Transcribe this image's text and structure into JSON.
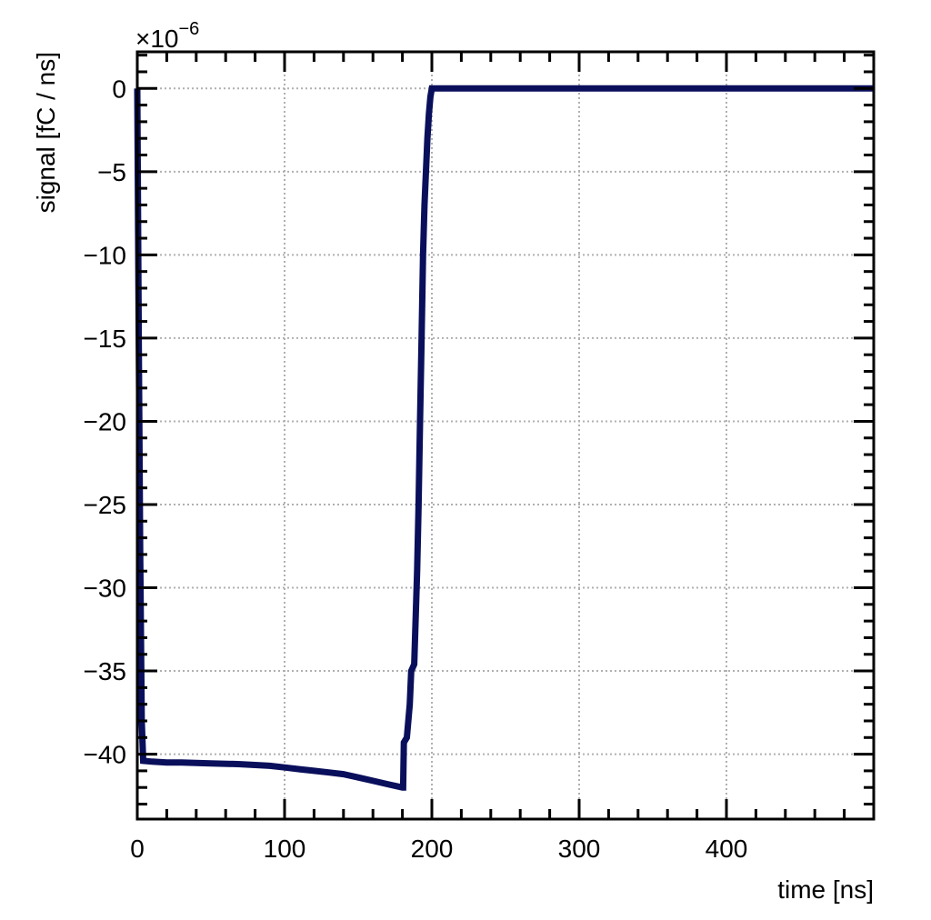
{
  "chart_data": {
    "type": "line",
    "title": "",
    "xlabel": "time [ns]",
    "ylabel": "signal [fC / ns]",
    "y_multiplier": "×10",
    "y_multiplier_exponent": "−6",
    "xlim": [
      0,
      500
    ],
    "ylim": [
      -43.9,
      2.2
    ],
    "grid": true,
    "legend": null,
    "x_ticks": [
      0,
      100,
      200,
      300,
      400
    ],
    "x_tick_labels": [
      "0",
      "100",
      "200",
      "300",
      "400"
    ],
    "x_minor_step": 20,
    "y_ticks": [
      0,
      -5,
      -10,
      -15,
      -20,
      -25,
      -30,
      -35,
      -40
    ],
    "y_tick_labels": [
      "0",
      "−5",
      "−10",
      "−15",
      "−20",
      "−25",
      "−30",
      "−35",
      "−40"
    ],
    "y_minor_step": 1,
    "line_color": "#0a0f5c",
    "series": [
      {
        "name": "signal",
        "x": [
          0,
          1,
          2,
          3,
          4,
          10,
          20,
          30,
          50,
          70,
          90,
          100,
          110,
          120,
          130,
          140,
          150,
          160,
          170,
          180,
          180.5,
          181,
          183,
          185,
          186,
          188,
          190,
          191,
          192,
          193,
          194,
          195,
          196,
          197,
          198,
          199,
          200,
          250,
          300,
          350,
          400,
          450,
          500
        ],
        "values": [
          0,
          -15,
          -28,
          -38,
          -40.4,
          -40.45,
          -40.5,
          -40.5,
          -40.55,
          -40.6,
          -40.7,
          -40.8,
          -40.9,
          -41.0,
          -41.1,
          -41.2,
          -41.4,
          -41.6,
          -41.8,
          -42.0,
          -42.0,
          -39.3,
          -39.0,
          -37.0,
          -35.0,
          -34.6,
          -29,
          -25,
          -20,
          -15,
          -10,
          -7,
          -5,
          -3,
          -1.5,
          -0.5,
          0,
          0,
          0,
          0,
          0,
          0,
          0
        ]
      }
    ]
  }
}
